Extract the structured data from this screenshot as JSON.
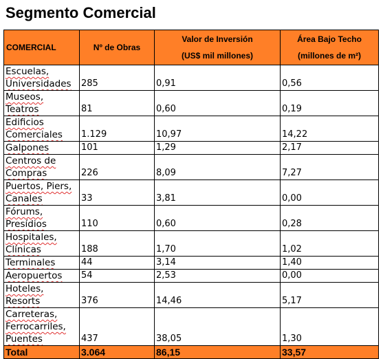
{
  "title": "Segmento Comercial",
  "table": {
    "headers": {
      "category": "COMERCIAL",
      "count": "Nº de Obras",
      "investment": [
        "Valor de Inversión",
        "(US$ mil millones)"
      ],
      "area": [
        "Área Bajo Techo",
        "(millones de m²)"
      ]
    },
    "rows": [
      {
        "category": [
          "Escuelas,",
          "Universidades"
        ],
        "count": "285",
        "investment": "0,91",
        "area": "0,56"
      },
      {
        "category": [
          "Museos,",
          "Teatros"
        ],
        "count": "81",
        "investment": "0,60",
        "area": "0,19"
      },
      {
        "category": [
          "Edificios",
          "Comerciales"
        ],
        "count": "1.129",
        "investment": "10,97",
        "area": "14,22"
      },
      {
        "category": [
          "Galpones"
        ],
        "count": "101",
        "investment": "1,29",
        "area": "2,17"
      },
      {
        "category": [
          "Centros de",
          "Compras"
        ],
        "count": "226",
        "investment": "8,09",
        "area": "7,27"
      },
      {
        "category": [
          "Puertos,  Piers,",
          "Canales"
        ],
        "count": "33",
        "investment": "3,81",
        "area": "0,00"
      },
      {
        "category": [
          "Fórums,",
          "Presídios"
        ],
        "count": "110",
        "investment": "0,60",
        "area": "0,28"
      },
      {
        "category": [
          "Hospitales,",
          "Clínicas"
        ],
        "count": "188",
        "investment": "1,70",
        "area": "1,02"
      },
      {
        "category": [
          "Terminales"
        ],
        "count": "44",
        "investment": "3,14",
        "area": "1,40"
      },
      {
        "category": [
          "Aeropuertos"
        ],
        "count": "54",
        "investment": "2,53",
        "area": "0,00"
      },
      {
        "category": [
          "Hoteles,",
          "Resorts"
        ],
        "count": "376",
        "investment": "14,46",
        "area": "5,17"
      },
      {
        "category": [
          "Carreteras,",
          "Ferrocarriles,",
          "Puentes"
        ],
        "count": "437",
        "investment": "38,05",
        "area": "1,30"
      }
    ],
    "total": {
      "label": "Total",
      "count": "3.064",
      "investment": "86,15",
      "area": "33,57"
    }
  },
  "colors": {
    "header_bg": "#ff7f27",
    "spellcheck_underline": "#e03030"
  }
}
